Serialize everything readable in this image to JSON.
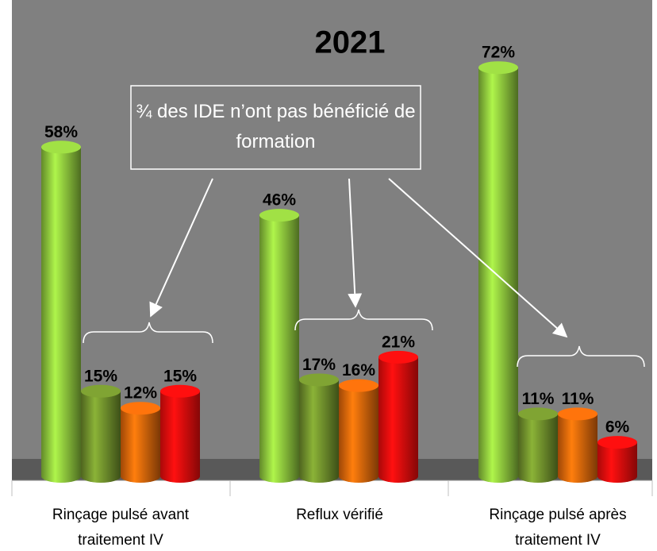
{
  "chart_data": {
    "type": "bar",
    "title": "2021",
    "annotation": "¾ des IDE n’ont pas bénéficié de formation",
    "categories": [
      "Rinçage pulsé avant traitement IV",
      "Reflux vérifié",
      "Rinçage pulsé après traitement IV"
    ],
    "series": [
      {
        "color": "#8cc43c",
        "values": [
          58,
          46,
          72
        ],
        "value_labels": [
          "58%",
          "46%",
          "72%"
        ]
      },
      {
        "color": "#6f8f2c",
        "values": [
          15,
          17,
          11
        ],
        "value_labels": [
          "15%",
          "17%",
          "11%"
        ]
      },
      {
        "color": "#e2650a",
        "values": [
          12,
          16,
          11
        ],
        "value_labels": [
          "12%",
          "16%",
          "11%"
        ]
      },
      {
        "color": "#f20d0d",
        "values": [
          15,
          21,
          6
        ],
        "value_labels": [
          "15%",
          "21%",
          "6%"
        ]
      }
    ]
  }
}
